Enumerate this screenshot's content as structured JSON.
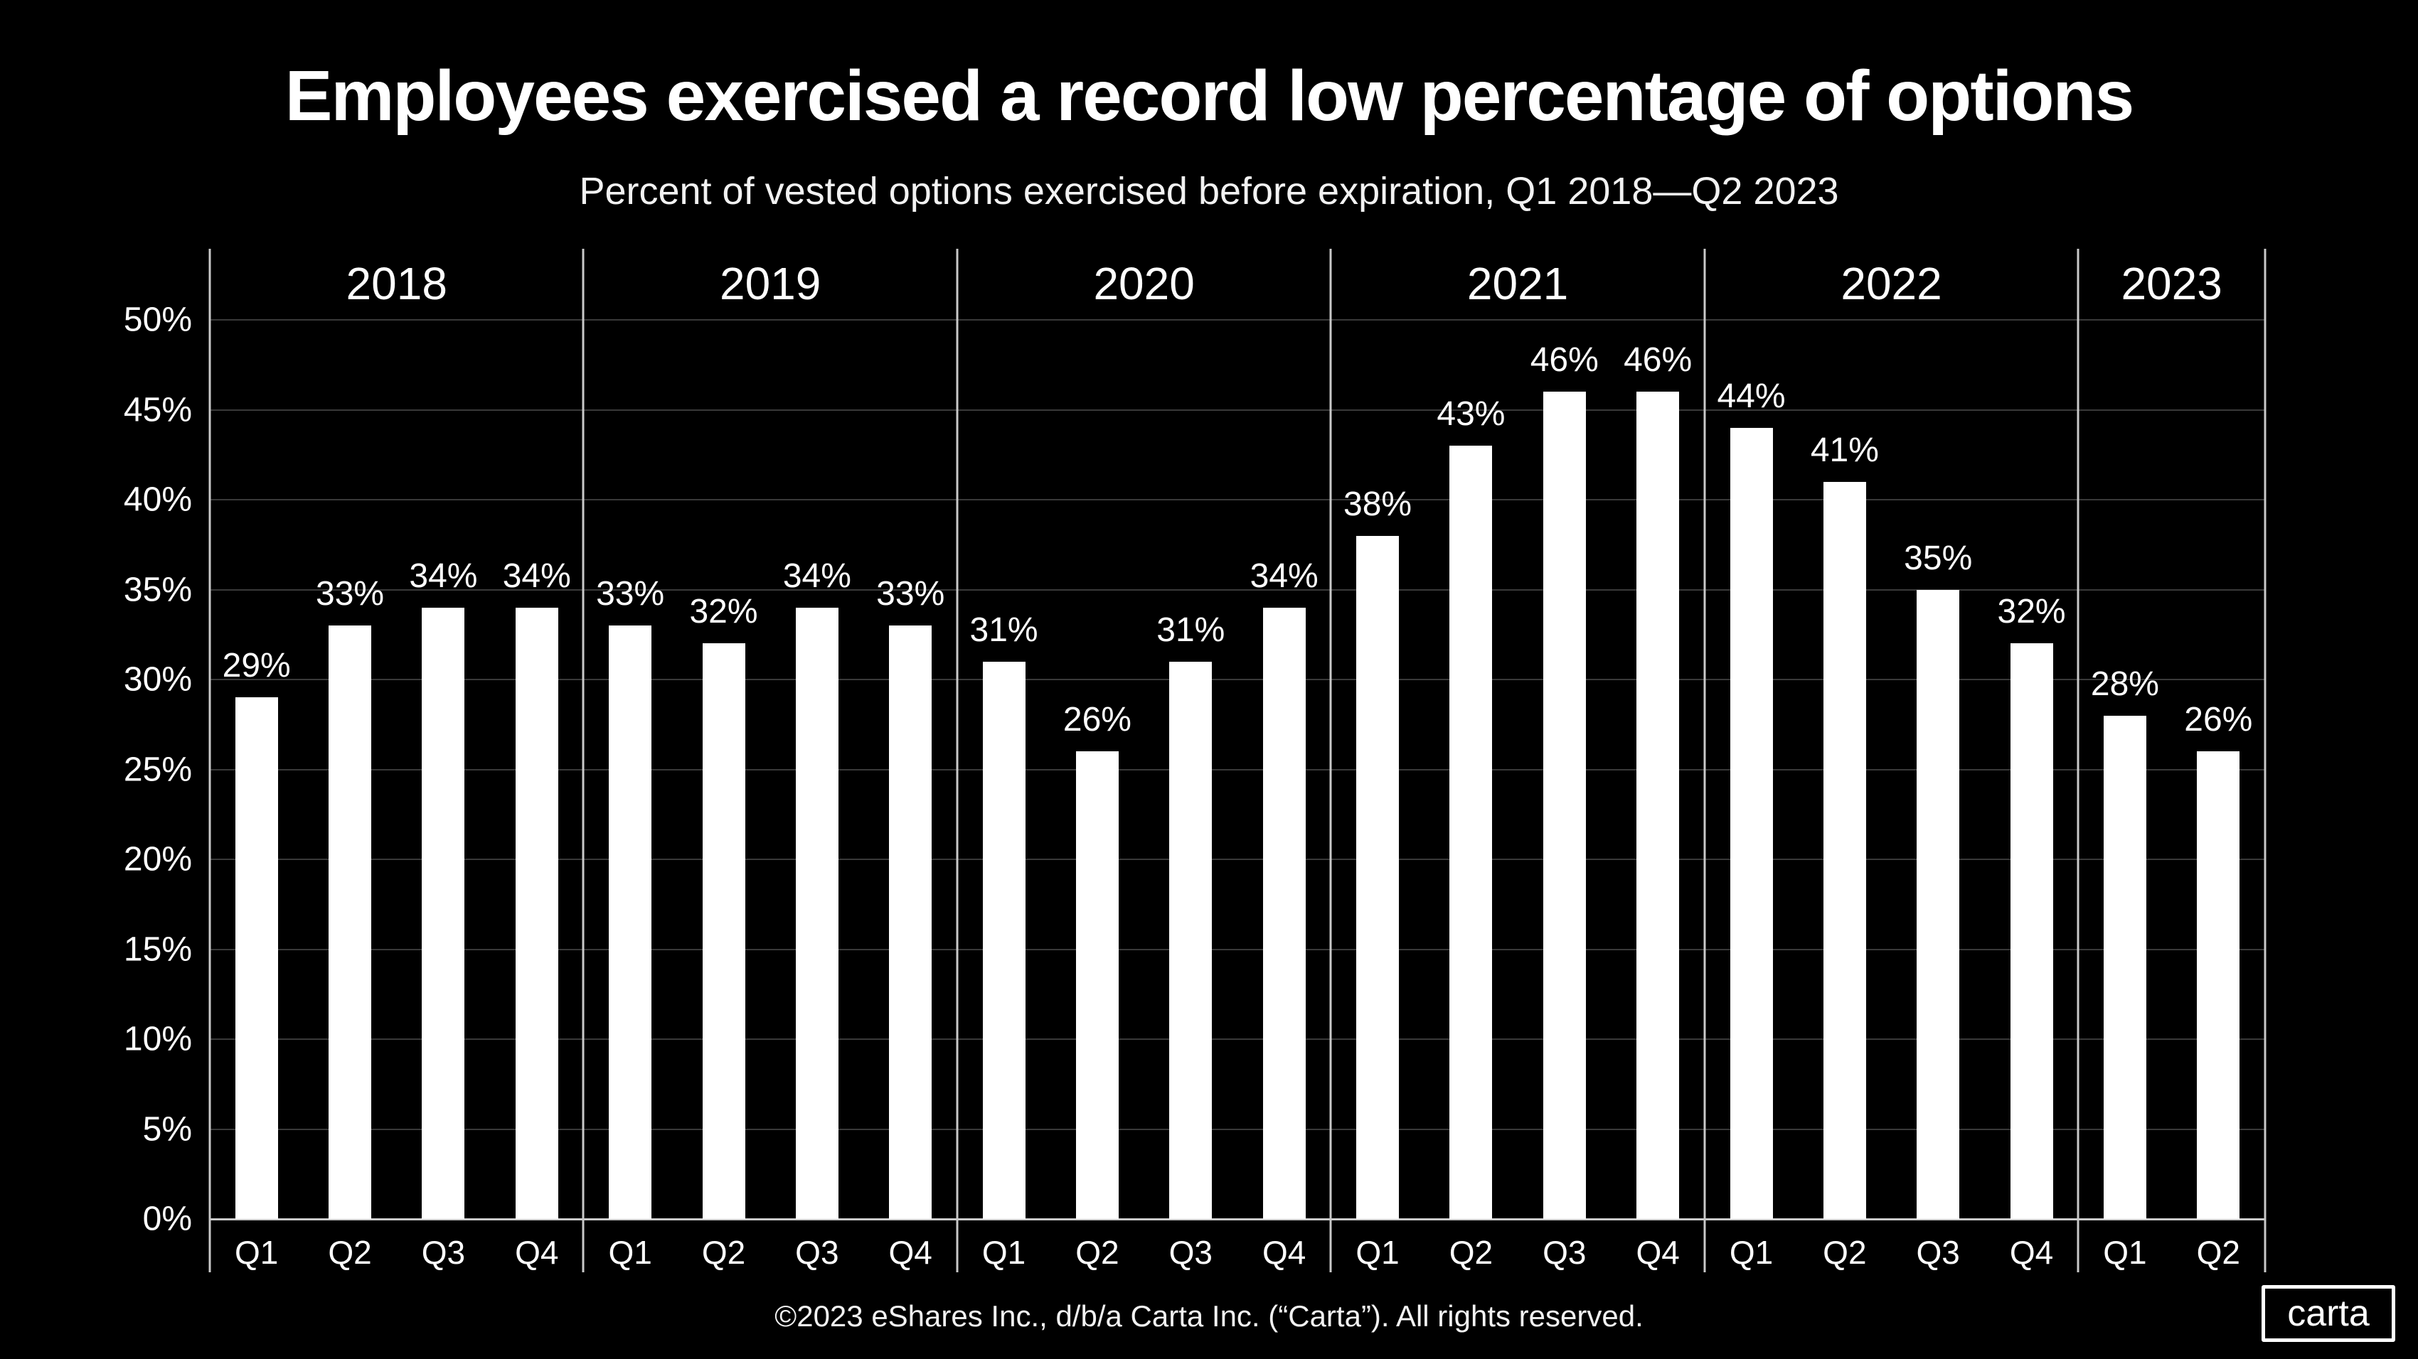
{
  "title": "Employees exercised a record low percentage of options",
  "subtitle": "Percent of vested options exercised before expiration, Q1 2018—Q2 2023",
  "footer": {
    "copyright": "©2023 eShares Inc., d/b/a Carta Inc. (“Carta”). All rights reserved.",
    "logo_text": "carta"
  },
  "chart_data": {
    "type": "bar",
    "title": "Employees exercised a record low percentage of options",
    "subtitle": "Percent of vested options exercised before expiration, Q1 2018—Q2 2023",
    "xlabel": "",
    "ylabel": "Percent of vested options exercised",
    "ylim": [
      0,
      50
    ],
    "ytick_step": 5,
    "yticks": [
      50,
      45,
      40,
      35,
      30,
      25,
      20,
      15,
      10,
      5,
      0
    ],
    "ytick_suffix": "%",
    "grid": "horizontal",
    "legend": "none",
    "groups": [
      {
        "year": "2018",
        "quarters": [
          "Q1",
          "Q2",
          "Q3",
          "Q4"
        ],
        "values": [
          29,
          33,
          34,
          34
        ]
      },
      {
        "year": "2019",
        "quarters": [
          "Q1",
          "Q2",
          "Q3",
          "Q4"
        ],
        "values": [
          33,
          32,
          34,
          33
        ]
      },
      {
        "year": "2020",
        "quarters": [
          "Q1",
          "Q2",
          "Q3",
          "Q4"
        ],
        "values": [
          31,
          26,
          31,
          34
        ]
      },
      {
        "year": "2021",
        "quarters": [
          "Q1",
          "Q2",
          "Q3",
          "Q4"
        ],
        "values": [
          38,
          43,
          46,
          46
        ]
      },
      {
        "year": "2022",
        "quarters": [
          "Q1",
          "Q2",
          "Q3",
          "Q4"
        ],
        "values": [
          44,
          41,
          35,
          32
        ]
      },
      {
        "year": "2023",
        "quarters": [
          "Q1",
          "Q2"
        ],
        "values": [
          28,
          26
        ]
      }
    ],
    "bar_label_suffix": "%",
    "colors": {
      "background": "#000000",
      "bar": "#ffffff",
      "gridline": "#393939",
      "axis_line": "#c9c9c9",
      "text": "#ffffff"
    }
  }
}
